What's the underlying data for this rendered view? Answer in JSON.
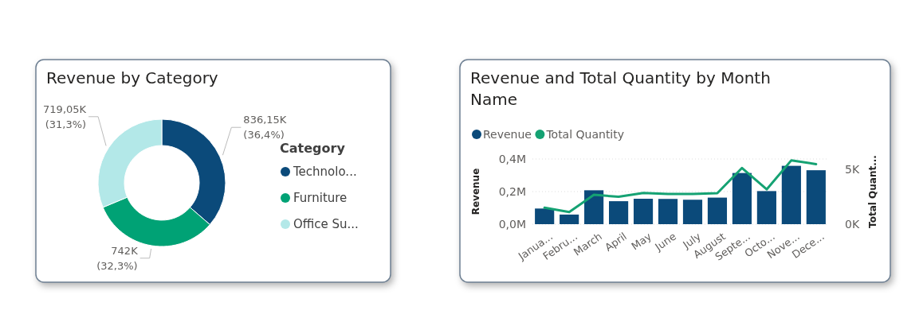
{
  "chart_data": [
    {
      "type": "donut",
      "title": "Revenue by Category",
      "legend_title": "Category",
      "legend": "right",
      "categories": [
        "Technolo...",
        "Furniture",
        "Office Su..."
      ],
      "values": [
        36.4,
        32.3,
        31.3
      ],
      "value_labels": [
        "836,15K (36,4%)",
        "742K (32,3%)",
        "719,05K (31,3%)"
      ],
      "colors": [
        "#0b4a7a",
        "#00a275",
        "#b3e8e8"
      ]
    },
    {
      "type": "bar",
      "title": "Revenue and Total Quantity by Month Name",
      "ylabel": "Revenue",
      "y2label": "Total Quant...",
      "categories": [
        "Janua...",
        "Febru...",
        "March",
        "April",
        "May",
        "June",
        "July",
        "August",
        "Septe...",
        "Octo...",
        "Nove...",
        "Dece..."
      ],
      "series": [
        {
          "name": "Revenue",
          "type": "bar",
          "color": "#0b4a7a",
          "values": [
            0.096,
            0.059,
            0.208,
            0.141,
            0.156,
            0.155,
            0.15,
            0.163,
            0.314,
            0.203,
            0.358,
            0.331
          ]
        },
        {
          "name": "Total Quantity",
          "type": "line",
          "axis": "y2",
          "color": "#15a273",
          "values": [
            1.5,
            1.1,
            2.68,
            2.5,
            2.85,
            2.75,
            2.75,
            2.83,
            5.13,
            3.18,
            5.83,
            5.48
          ]
        }
      ],
      "ylim": [
        0,
        0.4
      ],
      "yticks": [
        {
          "value": 0,
          "label": "0,0M"
        },
        {
          "value": 0.2,
          "label": "0,2M"
        },
        {
          "value": 0.4,
          "label": "0,4M"
        }
      ],
      "y2lim": [
        0,
        5.95
      ],
      "y2ticks": [
        {
          "value": 0,
          "label": "0K"
        },
        {
          "value": 5,
          "label": "5K"
        }
      ],
      "grid": "y",
      "legend": "top left",
      "line_style": "solid",
      "marker": "none"
    }
  ]
}
